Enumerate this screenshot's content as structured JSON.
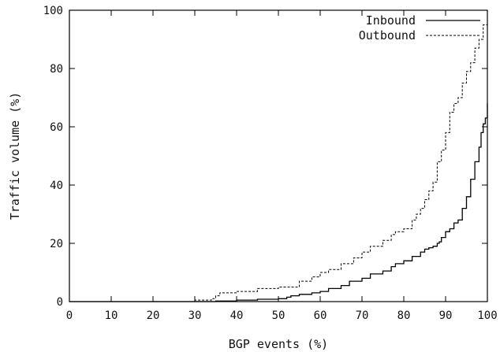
{
  "chart_data": {
    "type": "line",
    "title": "",
    "xlabel": "BGP events (%)",
    "ylabel": "Traffic volume (%)",
    "xlim": [
      0,
      100
    ],
    "ylim": [
      0,
      100
    ],
    "xticks": [
      0,
      10,
      20,
      30,
      40,
      50,
      60,
      70,
      80,
      90,
      100
    ],
    "yticks": [
      0,
      20,
      40,
      60,
      80,
      100
    ],
    "grid": false,
    "legend_position": "top-right",
    "series": [
      {
        "name": "Inbound",
        "style": "solid",
        "color": "#000000",
        "x": [
          0,
          20,
          35,
          40,
          45,
          50,
          52,
          53,
          55,
          58,
          60,
          62,
          65,
          67,
          70,
          72,
          75,
          77,
          78,
          80,
          82,
          84,
          85,
          86,
          87,
          88,
          88.5,
          89,
          90,
          91,
          92,
          93,
          94,
          95,
          96,
          97,
          98,
          98.5,
          99,
          99.5,
          100
        ],
        "y": [
          0,
          0,
          0.2,
          0.5,
          0.8,
          1,
          1.5,
          2,
          2.5,
          3,
          3.5,
          4.5,
          5.5,
          7,
          8,
          9.5,
          10.5,
          12,
          13,
          14,
          15.5,
          17,
          18,
          18.5,
          19,
          20,
          20.5,
          22,
          24,
          25,
          27,
          28,
          32,
          36,
          42,
          48,
          53,
          58,
          61,
          63,
          68
        ]
      },
      {
        "name": "Outbound",
        "style": "dashed",
        "color": "#000000",
        "x": [
          0,
          20,
          30,
          34,
          35,
          36,
          40,
          45,
          50,
          55,
          58,
          60,
          62,
          65,
          68,
          70,
          72,
          75,
          77,
          78,
          80,
          82,
          83,
          84,
          85,
          86,
          87,
          88,
          89,
          90,
          91,
          92,
          93,
          94,
          95,
          96,
          97,
          98,
          99,
          100
        ],
        "y": [
          0,
          0,
          0.5,
          1,
          2,
          3,
          3.5,
          4.5,
          5,
          7,
          8.5,
          10,
          11,
          13,
          15,
          17,
          19,
          21,
          23,
          24,
          25,
          28,
          30,
          32,
          35,
          38,
          41,
          48,
          52,
          58,
          65,
          68,
          70,
          75,
          79,
          82,
          87,
          90,
          95,
          98
        ]
      }
    ]
  }
}
